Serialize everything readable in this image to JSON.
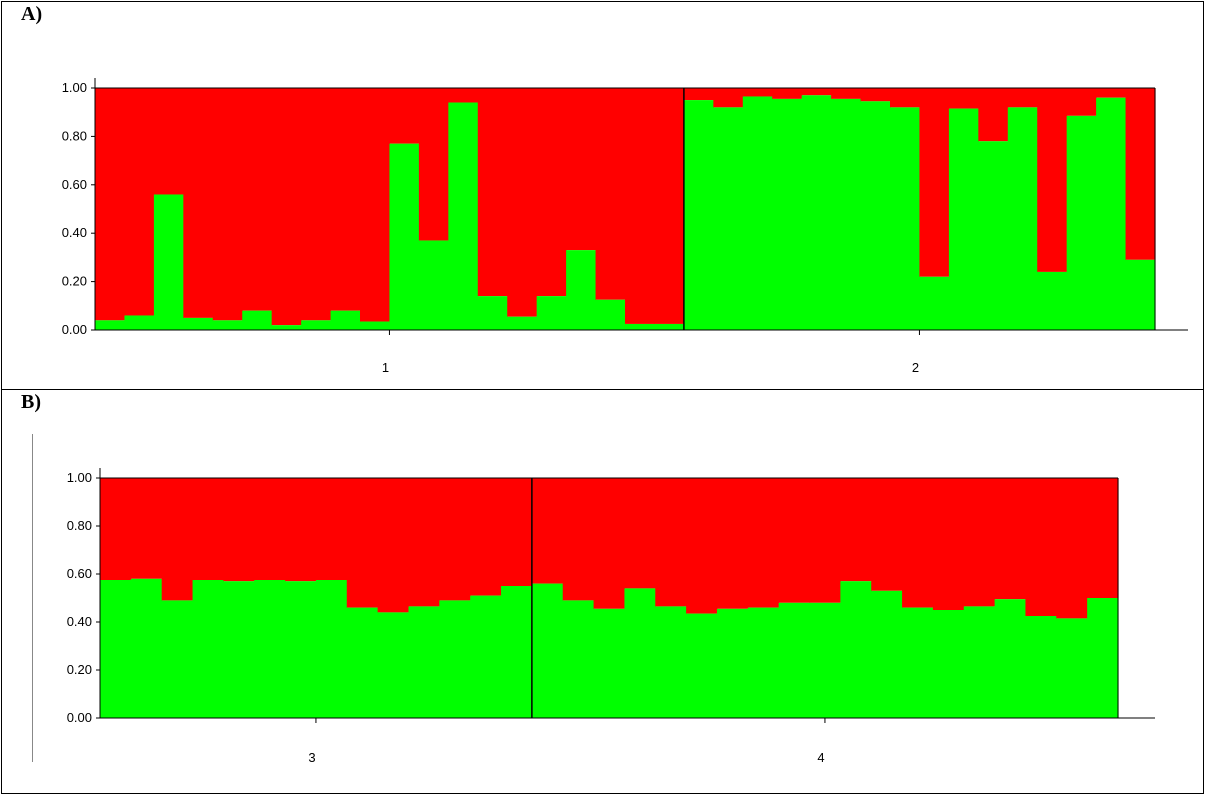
{
  "panels": [
    {
      "label": "A)"
    },
    {
      "label": "B)"
    }
  ],
  "chart_data": [
    {
      "type": "bar",
      "stacked": true,
      "title": "",
      "xlabel": "",
      "ylabel": "",
      "ylim": [
        0,
        1
      ],
      "yticks": [
        "0.00",
        "0.20",
        "0.40",
        "0.60",
        "0.80",
        "1.00"
      ],
      "groups": [
        {
          "label": "1",
          "count": 20
        },
        {
          "label": "2",
          "count": 16
        }
      ],
      "colors": {
        "green": "#00ff00",
        "red": "#ff0000"
      },
      "series": [
        {
          "color": "#00ff00",
          "values": [
            0.04,
            0.06,
            0.56,
            0.05,
            0.04,
            0.08,
            0.02,
            0.04,
            0.08,
            0.035,
            0.77,
            0.37,
            0.94,
            0.14,
            0.055,
            0.14,
            0.33,
            0.125,
            0.025,
            0.025,
            0.95,
            0.92,
            0.965,
            0.955,
            0.97,
            0.955,
            0.945,
            0.92,
            0.22,
            0.915,
            0.78,
            0.92,
            0.24,
            0.885,
            0.96,
            0.29
          ]
        },
        {
          "color": "#ff0000",
          "values": [
            0.96,
            0.94,
            0.44,
            0.95,
            0.96,
            0.92,
            0.98,
            0.96,
            0.92,
            0.965,
            0.23,
            0.63,
            0.06,
            0.86,
            0.945,
            0.86,
            0.67,
            0.875,
            0.975,
            0.975,
            0.05,
            0.08,
            0.035,
            0.045,
            0.03,
            0.045,
            0.055,
            0.08,
            0.78,
            0.085,
            0.22,
            0.08,
            0.76,
            0.115,
            0.04,
            0.71
          ]
        }
      ]
    },
    {
      "type": "bar",
      "stacked": true,
      "title": "",
      "xlabel": "",
      "ylabel": "",
      "ylim": [
        0,
        1
      ],
      "yticks": [
        "0.00",
        "0.20",
        "0.40",
        "0.60",
        "0.80",
        "1.00"
      ],
      "groups": [
        {
          "label": "3",
          "count": 14
        },
        {
          "label": "4",
          "count": 19
        }
      ],
      "colors": {
        "green": "#00ff00",
        "red": "#ff0000"
      },
      "series": [
        {
          "color": "#00ff00",
          "values": [
            0.575,
            0.58,
            0.49,
            0.575,
            0.57,
            0.575,
            0.57,
            0.575,
            0.46,
            0.44,
            0.465,
            0.49,
            0.51,
            0.55,
            0.56,
            0.49,
            0.455,
            0.54,
            0.465,
            0.435,
            0.455,
            0.46,
            0.48,
            0.48,
            0.57,
            0.53,
            0.46,
            0.45,
            0.465,
            0.495,
            0.425,
            0.415,
            0.5
          ]
        },
        {
          "color": "#ff0000",
          "values": [
            0.425,
            0.42,
            0.51,
            0.425,
            0.43,
            0.425,
            0.43,
            0.425,
            0.54,
            0.56,
            0.535,
            0.51,
            0.49,
            0.45,
            0.44,
            0.51,
            0.545,
            0.46,
            0.535,
            0.565,
            0.545,
            0.54,
            0.52,
            0.52,
            0.43,
            0.47,
            0.54,
            0.55,
            0.535,
            0.505,
            0.575,
            0.585,
            0.5
          ]
        }
      ]
    }
  ]
}
